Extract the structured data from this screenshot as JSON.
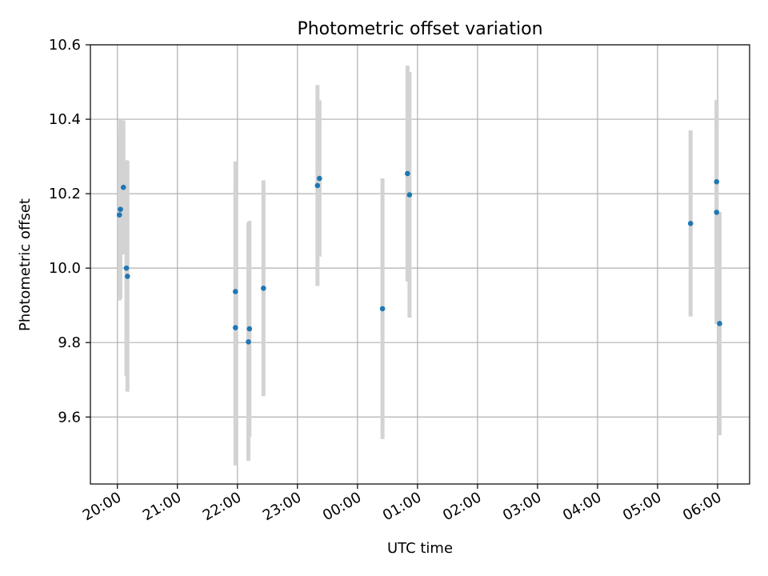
{
  "chart_data": {
    "type": "scatter",
    "title": "Photometric offset variation",
    "xlabel": "UTC time",
    "ylabel": "Photometric offset",
    "x_tick_labels": [
      "20:00",
      "21:00",
      "22:00",
      "23:00",
      "00:00",
      "01:00",
      "02:00",
      "03:00",
      "04:00",
      "05:00",
      "06:00"
    ],
    "y_tick_labels": [
      "9.6",
      "9.8",
      "10.0",
      "10.2",
      "10.4",
      "10.6"
    ],
    "ylim": [
      9.42,
      10.6
    ],
    "xlim": [
      "19:33",
      "06:32"
    ],
    "grid": true,
    "legend": "none",
    "colors": {
      "points": "#1f77b4",
      "errorbars": "#d3d3d3",
      "grid": "#b0b0b0"
    },
    "points": [
      {
        "x": "20:02",
        "y": 10.143,
        "err": 0.23
      },
      {
        "x": "20:03",
        "y": 10.158,
        "err": 0.24
      },
      {
        "x": "20:06",
        "y": 10.217,
        "err": 0.18
      },
      {
        "x": "20:09",
        "y": 10.0,
        "err": 0.29
      },
      {
        "x": "20:10",
        "y": 9.978,
        "err": 0.31
      },
      {
        "x": "21:58",
        "y": 9.937,
        "err": 0.35
      },
      {
        "x": "21:58",
        "y": 9.84,
        "err": 0.37
      },
      {
        "x": "22:11",
        "y": 9.802,
        "err": 0.32
      },
      {
        "x": "22:12",
        "y": 9.837,
        "err": 0.29
      },
      {
        "x": "22:26",
        "y": 9.946,
        "err": 0.29
      },
      {
        "x": "23:20",
        "y": 10.222,
        "err": 0.27
      },
      {
        "x": "23:22",
        "y": 10.241,
        "err": 0.21
      },
      {
        "x": "00:25",
        "y": 9.891,
        "err": 0.35
      },
      {
        "x": "00:50",
        "y": 10.254,
        "err": 0.29
      },
      {
        "x": "00:52",
        "y": 10.197,
        "err": 0.33
      },
      {
        "x": "05:33",
        "y": 10.12,
        "err": 0.25
      },
      {
        "x": "05:59",
        "y": 10.232,
        "err": 0.22
      },
      {
        "x": "05:59",
        "y": 10.15,
        "err": 0.3
      },
      {
        "x": "06:02",
        "y": 9.851,
        "err": 0.3
      }
    ]
  }
}
